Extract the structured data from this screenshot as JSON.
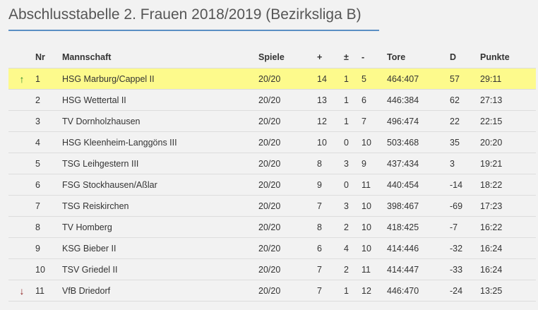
{
  "title": "Abschlusstabelle 2. Frauen 2018/2019 (Bezirksliga B)",
  "colors": {
    "highlight": "#fdfa8c",
    "accent": "#5b8fc4",
    "up": "#2b8a2b",
    "down": "#8b1a1a"
  },
  "headers": {
    "nr": "Nr",
    "team": "Mannschaft",
    "games": "Spiele",
    "plus": "+",
    "pm": "±",
    "minus": "-",
    "goals": "Tore",
    "diff": "D",
    "points": "Punkte"
  },
  "rows": [
    {
      "icon": "arrow-up-icon",
      "nr": "1",
      "team": "HSG Marburg/Cappel II",
      "games": "20/20",
      "plus": "14",
      "pm": "1",
      "minus": "5",
      "goals": "464:407",
      "diff": "57",
      "points": "29:11"
    },
    {
      "icon": "",
      "nr": "2",
      "team": "HSG Wettertal II",
      "games": "20/20",
      "plus": "13",
      "pm": "1",
      "minus": "6",
      "goals": "446:384",
      "diff": "62",
      "points": "27:13"
    },
    {
      "icon": "",
      "nr": "3",
      "team": "TV Dornholzhausen",
      "games": "20/20",
      "plus": "12",
      "pm": "1",
      "minus": "7",
      "goals": "496:474",
      "diff": "22",
      "points": "22:15"
    },
    {
      "icon": "",
      "nr": "4",
      "team": "HSG Kleenheim-Langgöns III",
      "games": "20/20",
      "plus": "10",
      "pm": "0",
      "minus": "10",
      "goals": "503:468",
      "diff": "35",
      "points": "20:20"
    },
    {
      "icon": "",
      "nr": "5",
      "team": "TSG Leihgestern III",
      "games": "20/20",
      "plus": "8",
      "pm": "3",
      "minus": "9",
      "goals": "437:434",
      "diff": "3",
      "points": "19:21"
    },
    {
      "icon": "",
      "nr": "6",
      "team": "FSG Stockhausen/Aßlar",
      "games": "20/20",
      "plus": "9",
      "pm": "0",
      "minus": "11",
      "goals": "440:454",
      "diff": "-14",
      "points": "18:22"
    },
    {
      "icon": "",
      "nr": "7",
      "team": "TSG Reiskirchen",
      "games": "20/20",
      "plus": "7",
      "pm": "3",
      "minus": "10",
      "goals": "398:467",
      "diff": "-69",
      "points": "17:23"
    },
    {
      "icon": "",
      "nr": "8",
      "team": "TV Homberg",
      "games": "20/20",
      "plus": "8",
      "pm": "2",
      "minus": "10",
      "goals": "418:425",
      "diff": "-7",
      "points": "16:22"
    },
    {
      "icon": "",
      "nr": "9",
      "team": "KSG Bieber II",
      "games": "20/20",
      "plus": "6",
      "pm": "4",
      "minus": "10",
      "goals": "414:446",
      "diff": "-32",
      "points": "16:24"
    },
    {
      "icon": "",
      "nr": "10",
      "team": "TSV Griedel II",
      "games": "20/20",
      "plus": "7",
      "pm": "2",
      "minus": "11",
      "goals": "414:447",
      "diff": "-33",
      "points": "16:24"
    },
    {
      "icon": "arrow-down-icon",
      "nr": "11",
      "team": "VfB Driedorf",
      "games": "20/20",
      "plus": "7",
      "pm": "1",
      "minus": "12",
      "goals": "446:470",
      "diff": "-24",
      "points": "13:25"
    }
  ]
}
